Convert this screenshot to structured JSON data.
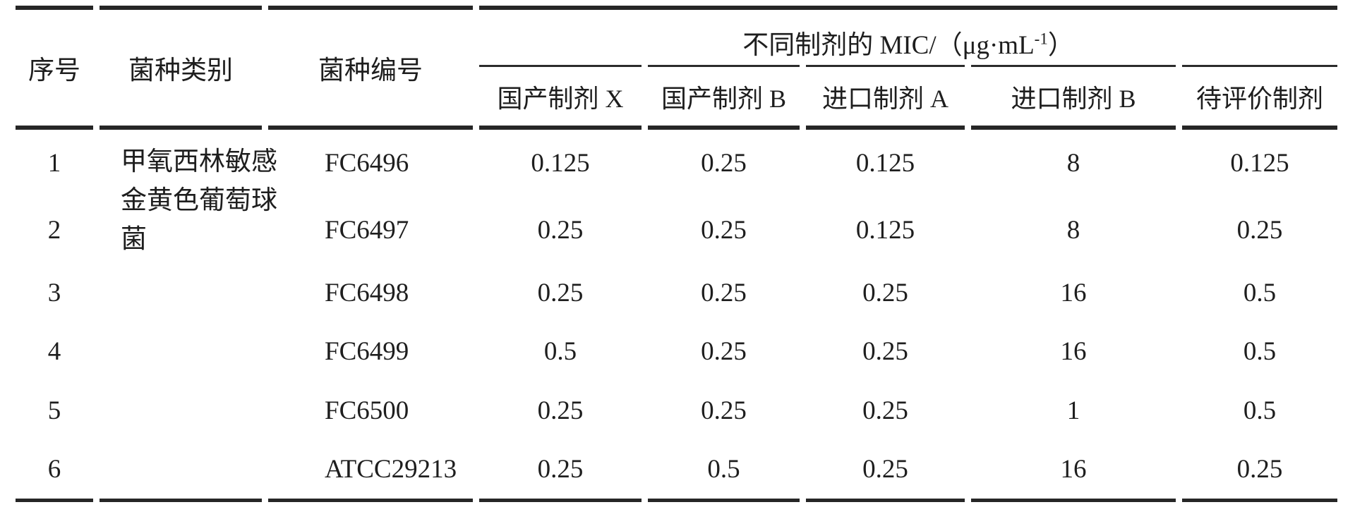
{
  "table": {
    "ink_color": "#262626",
    "background_color": "#ffffff",
    "header": {
      "col_no": "序号",
      "col_category": "菌种类别",
      "col_strain_id": "菌种编号",
      "mic_group": {
        "prefix": "不同制剂的 MIC/（μg·mL",
        "sup": "-1",
        "suffix": "）"
      },
      "sub_columns": [
        "国产制剂 X",
        "国产制剂 B",
        "进口制剂 A",
        "进口制剂 B",
        "待评价制剂"
      ]
    },
    "category_span_text": "甲氧西林敏感金黄色葡萄球菌",
    "rows": [
      {
        "no": "1",
        "strain_id": "FC6496",
        "values": [
          "0.125",
          "0.25",
          "0.125",
          "8",
          "0.125"
        ]
      },
      {
        "no": "2",
        "strain_id": "FC6497",
        "values": [
          "0.25",
          "0.25",
          "0.125",
          "8",
          "0.25"
        ]
      },
      {
        "no": "3",
        "strain_id": "FC6498",
        "values": [
          "0.25",
          "0.25",
          "0.25",
          "16",
          "0.5"
        ]
      },
      {
        "no": "4",
        "strain_id": "FC6499",
        "values": [
          "0.5",
          "0.25",
          "0.25",
          "16",
          "0.5"
        ]
      },
      {
        "no": "5",
        "strain_id": "FC6500",
        "values": [
          "0.25",
          "0.25",
          "0.25",
          "1",
          "0.5"
        ]
      },
      {
        "no": "6",
        "strain_id": "ATCC29213",
        "values": [
          "0.25",
          "0.5",
          "0.25",
          "16",
          "0.25"
        ]
      }
    ]
  }
}
